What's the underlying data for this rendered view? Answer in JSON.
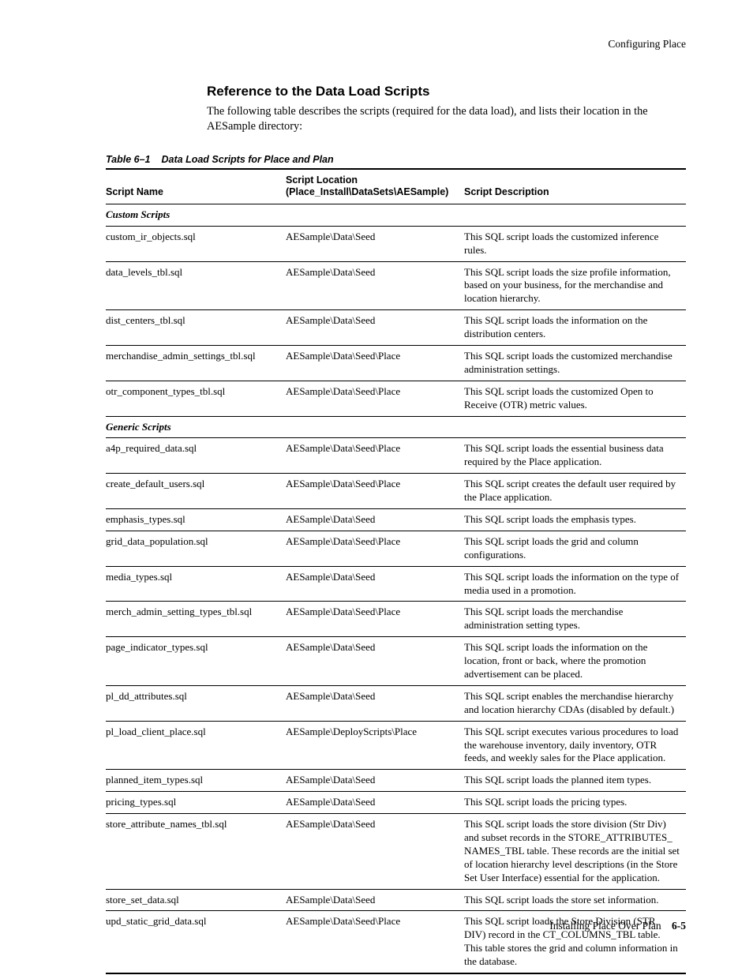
{
  "running_head": "Configuring Place",
  "section_title": "Reference to the Data Load Scripts",
  "intro": "The following table describes the scripts (required for the data load), and lists their location in the AESample directory:",
  "table_caption_num": "Table 6–1",
  "table_caption_text": "Data Load Scripts for Place and Plan",
  "columns": {
    "name": "Script Name",
    "loc_l1": "Script Location",
    "loc_l2": "(Place_Install\\DataSets\\AESample)",
    "desc": "Script Description"
  },
  "sections": [
    {
      "heading": "Custom Scripts",
      "rows": [
        {
          "name": "custom_ir_objects.sql",
          "loc": "AESample\\Data\\Seed",
          "desc": "This SQL script loads the customized inference rules."
        },
        {
          "name": "data_levels_tbl.sql",
          "loc": "AESample\\Data\\Seed",
          "desc": "This SQL script loads the size profile information, based on your business, for the merchandise and location hierarchy."
        },
        {
          "name": "dist_centers_tbl.sql",
          "loc": "AESample\\Data\\Seed",
          "desc": "This SQL script loads the information on the distribution centers."
        },
        {
          "name": "merchandise_admin_settings_tbl.sql",
          "loc": "AESample\\Data\\Seed\\Place",
          "desc": "This SQL script loads the customized merchandise administration settings."
        },
        {
          "name": "otr_component_types_tbl.sql",
          "loc": "AESample\\Data\\Seed\\Place",
          "desc": "This SQL script loads the customized Open to Receive (OTR) metric values."
        }
      ]
    },
    {
      "heading": "Generic Scripts",
      "rows": [
        {
          "name": "a4p_required_data.sql",
          "loc": "AESample\\Data\\Seed\\Place",
          "desc": "This SQL script loads the essential business data required by the Place application."
        },
        {
          "name": "create_default_users.sql",
          "loc": "AESample\\Data\\Seed\\Place",
          "desc": "This SQL script creates the default user required by the Place application."
        },
        {
          "name": "emphasis_types.sql",
          "loc": "AESample\\Data\\Seed",
          "desc": "This SQL script loads the emphasis types."
        },
        {
          "name": "grid_data_population.sql",
          "loc": "AESample\\Data\\Seed\\Place",
          "desc": "This SQL script loads the grid and column configurations."
        },
        {
          "name": "media_types.sql",
          "loc": "AESample\\Data\\Seed",
          "desc": "This SQL script loads the information on the type of media used in a promotion."
        },
        {
          "name": "merch_admin_setting_types_tbl.sql",
          "loc": "AESample\\Data\\Seed\\Place",
          "desc": "This SQL script loads the merchandise administration setting types."
        },
        {
          "name": "page_indicator_types.sql",
          "loc": "AESample\\Data\\Seed",
          "desc": "This SQL script loads the information on the location, front or back, where the promotion advertisement can be placed."
        },
        {
          "name": "pl_dd_attributes.sql",
          "loc": "AESample\\Data\\Seed",
          "desc": "This SQL script enables the merchandise hierarchy and location hierarchy CDAs (disabled by default.)"
        },
        {
          "name": "pl_load_client_place.sql",
          "loc": "AESample\\DeployScripts\\Place",
          "desc": "This SQL script executes various procedures to load the warehouse inventory, daily inventory, OTR feeds, and weekly sales for the Place application."
        },
        {
          "name": "planned_item_types.sql",
          "loc": "AESample\\Data\\Seed",
          "desc": "This SQL script loads the planned item types."
        },
        {
          "name": "pricing_types.sql",
          "loc": "AESample\\Data\\Seed",
          "desc": "This SQL script loads the pricing types."
        },
        {
          "name": "store_attribute_names_tbl.sql",
          "loc": "AESample\\Data\\Seed",
          "desc": "This SQL script loads the store division (Str Div) and subset records in the STORE_ATTRIBUTES_ NAMES_TBL table. These records are the initial set of location hierarchy level descriptions (in the Store Set User Interface) essential for the application."
        },
        {
          "name": "store_set_data.sql",
          "loc": "AESample\\Data\\Seed",
          "desc": "This SQL script loads the store set information."
        },
        {
          "name": "upd_static_grid_data.sql",
          "loc": "AESample\\Data\\Seed\\Place",
          "desc": "This SQL script loads the Store Division (STR DIV) record in the CT_COLUMNS_TBL table. This table stores the grid and column information in the database."
        }
      ]
    }
  ],
  "footer_text": "Installing Place Over Plan",
  "footer_page": "6-5"
}
